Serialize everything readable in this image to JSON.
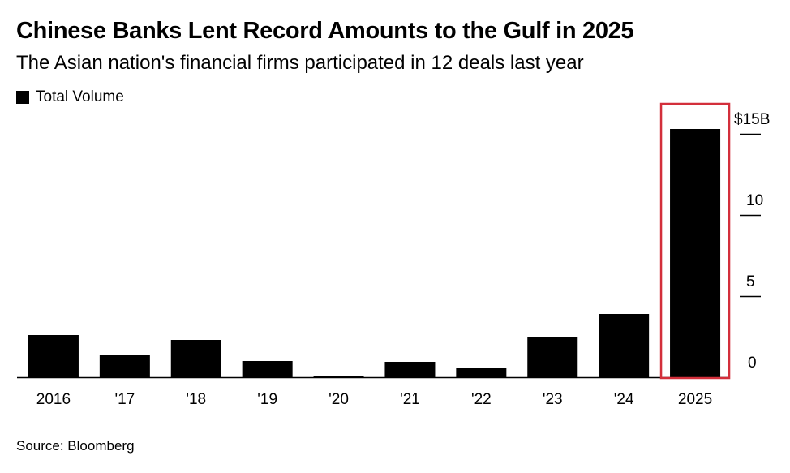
{
  "header": {
    "title": "Chinese Banks Lent Record Amounts to the Gulf in 2025",
    "subtitle": "The Asian nation's financial firms participated in 12 deals last year"
  },
  "footer": {
    "source": "Source: Bloomberg"
  },
  "colors": {
    "bar": "#000000",
    "highlight": "#d32f3b"
  },
  "chart_data": {
    "type": "bar",
    "title": "Chinese Banks Lent Record Amounts to the Gulf in 2025",
    "subtitle": "The Asian nation's financial firms participated in 12 deals last year",
    "categories": [
      "2016",
      "'17",
      "'18",
      "'19",
      "'20",
      "'21",
      "'22",
      "'23",
      "'24",
      "2025"
    ],
    "series": [
      {
        "name": "Total Volume",
        "values": [
          2.6,
          1.4,
          2.3,
          1.0,
          0.05,
          0.95,
          0.6,
          2.5,
          3.9,
          15.3
        ]
      }
    ],
    "ylim": [
      0,
      15
    ],
    "yticks": [
      {
        "value": 15,
        "label": "$15B"
      },
      {
        "value": 10,
        "label": "10"
      },
      {
        "value": 5,
        "label": "5"
      },
      {
        "value": 0,
        "label": "0"
      }
    ],
    "highlight_category": "2025",
    "legend": "top-left",
    "grid": false
  }
}
